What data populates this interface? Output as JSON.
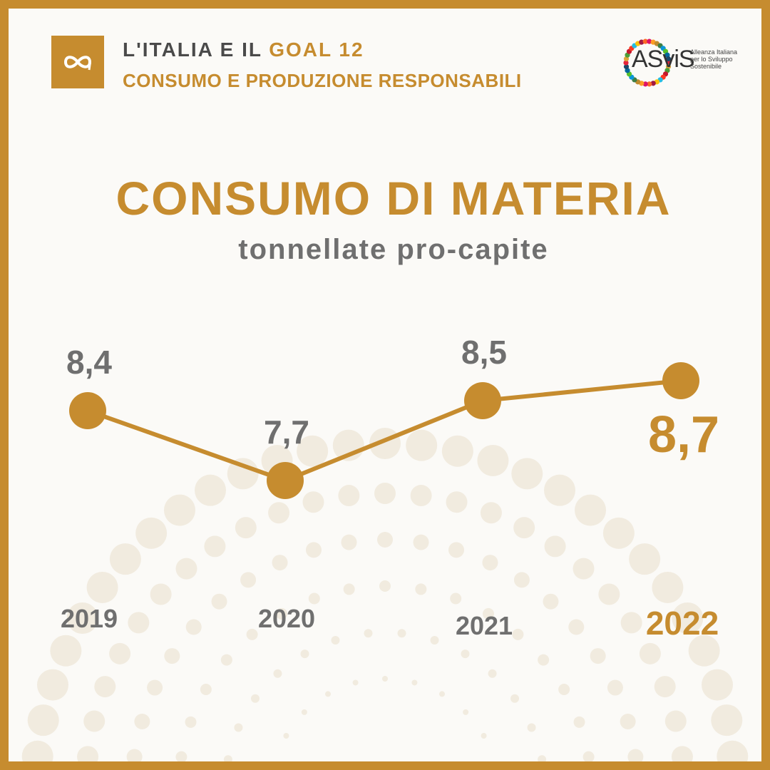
{
  "header": {
    "line1_prefix": "L'ITALIA E IL ",
    "line1_highlight": "GOAL 12",
    "line2": "CONSUMO E PRODUZIONE RESPONSABILI"
  },
  "logo": {
    "word": "ASviS",
    "sub": [
      "Alleanza Italiana",
      "per lo Sviluppo",
      "Sostenibile"
    ]
  },
  "colors": {
    "gold": "#c68c2f",
    "grey": "#6f6f6f",
    "background": "#fbfaf7"
  },
  "chart_data": {
    "type": "line",
    "title": "CONSUMO DI MATERIA",
    "subtitle": "tonnellate pro-capite",
    "categories": [
      "2019",
      "2020",
      "2021",
      "2022"
    ],
    "values": [
      8.4,
      7.7,
      8.5,
      8.7
    ],
    "value_labels": [
      "8,4",
      "7,7",
      "8,5",
      "8,7"
    ],
    "highlight": "2022",
    "ylim": [
      7.0,
      9.0
    ],
    "grid": false
  }
}
